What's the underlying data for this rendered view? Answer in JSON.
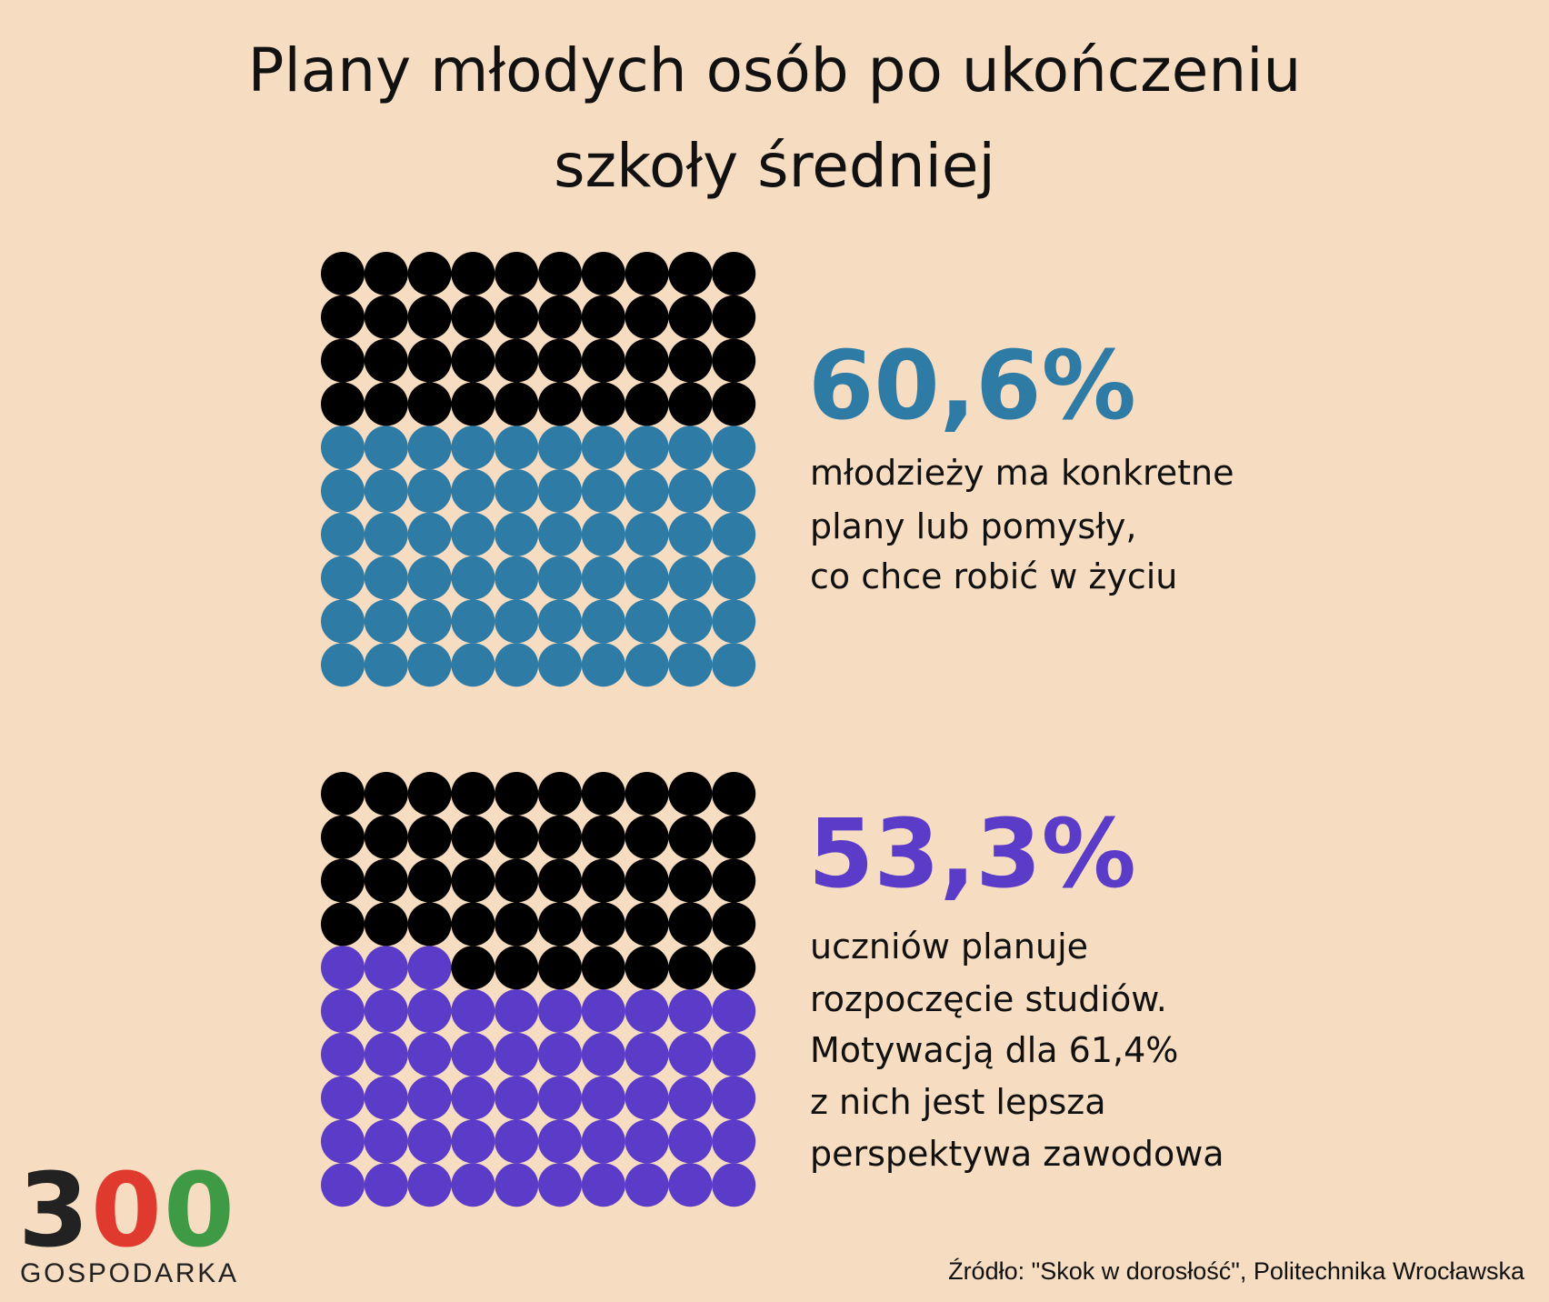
{
  "title": [
    "Plany młodych osób po ukończeniu",
    "szkoły średniej"
  ],
  "chart_data": [
    {
      "type": "waffle",
      "value": 60.6,
      "value_label": "60,6%",
      "color": "#2e7ba6",
      "rest_color": "#000000",
      "description": [
        "młodzieży ma konkretne",
        "plany lub pomysły,",
        "co chce robić w życiu"
      ]
    },
    {
      "type": "waffle",
      "value": 53.3,
      "value_label": "53,3%",
      "color": "#5a3cc8",
      "rest_color": "#000000",
      "description": [
        "uczniów planuje",
        "rozpoczęcie studiów.",
        "Motywacją dla 61,4%",
        "z nich jest lepsza",
        "perspektywa zawodowa"
      ]
    }
  ],
  "source": "Źródło: \"Skok w dorosłość\", Politechnika Wrocławska",
  "logo": {
    "digits": [
      "3",
      "0",
      "0"
    ],
    "name": "GOSPODARKA"
  }
}
